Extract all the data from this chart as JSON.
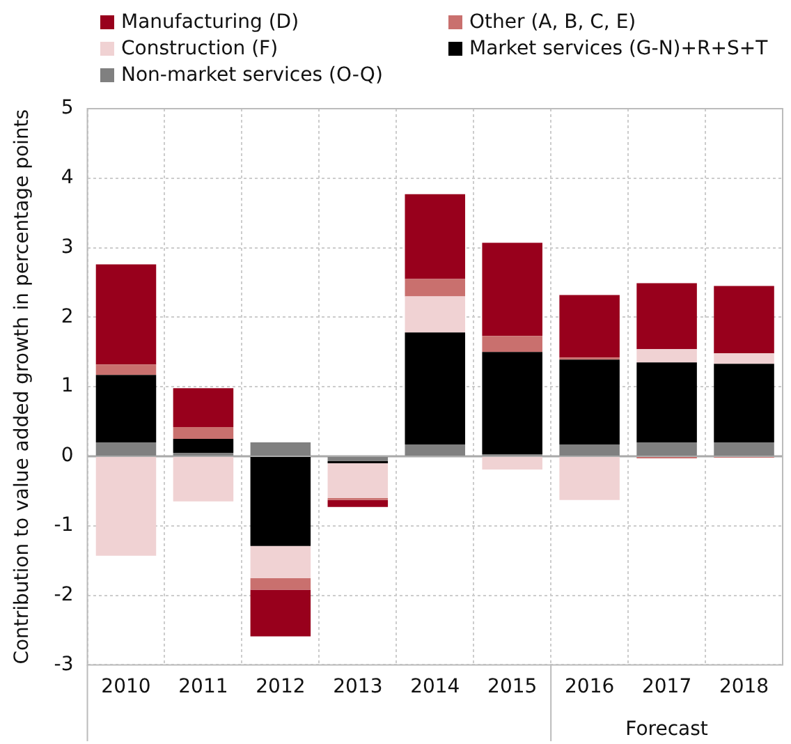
{
  "chart_data": {
    "type": "bar",
    "stacked": true,
    "ylabel": "Contribution to value added growth in percentage points",
    "categories": [
      "2010",
      "2011",
      "2012",
      "2013",
      "2014",
      "2015",
      "2016",
      "2017",
      "2018"
    ],
    "series": [
      {
        "name": "Non-market services (O-Q)",
        "color": "#808080",
        "values": [
          0.2,
          0.05,
          0.2,
          -0.07,
          0.17,
          0.03,
          0.17,
          0.2,
          0.2
        ]
      },
      {
        "name": "Market services (G-N)+R+S+T",
        "color": "#000000",
        "values": [
          0.97,
          0.2,
          -1.29,
          -0.03,
          1.61,
          1.47,
          1.22,
          1.15,
          1.13
        ]
      },
      {
        "name": "Construction (F)",
        "color": "#f0d2d3",
        "values": [
          -1.43,
          -0.65,
          -0.46,
          -0.5,
          0.52,
          -0.19,
          -0.63,
          0.19,
          0.15
        ]
      },
      {
        "name": "Other (A, B, C, E)",
        "color": "#c9706e",
        "values": [
          0.15,
          0.17,
          -0.17,
          -0.03,
          0.25,
          0.23,
          0.03,
          -0.03,
          -0.02
        ]
      },
      {
        "name": "Manufacturing (D)",
        "color": "#98001c",
        "values": [
          1.44,
          0.56,
          -0.67,
          -0.1,
          1.22,
          1.34,
          0.9,
          0.95,
          0.97
        ]
      }
    ],
    "ylim": [
      -3,
      5
    ],
    "yticks": [
      -3,
      -2,
      -1,
      0,
      1,
      2,
      3,
      4,
      5
    ],
    "grid": true,
    "legend": "top",
    "annotations": [
      "Forecast"
    ]
  }
}
